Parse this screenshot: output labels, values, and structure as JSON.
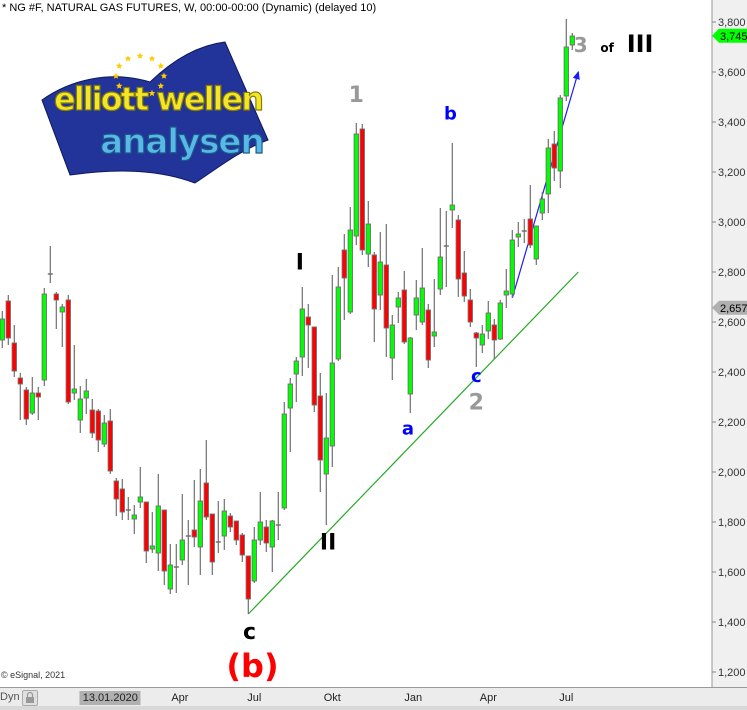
{
  "header": {
    "title": "* NG #F, NATURAL GAS FUTURES, W, 00:00-00:00 (Dynamic) (delayed 10)"
  },
  "copyright": "© eSignal, 2021",
  "logo": {
    "line1": "elliott wellen",
    "line2": "analysen"
  },
  "bottom_bar": {
    "mode_label": "Dyn",
    "lock_icon": "lock-icon"
  },
  "colors": {
    "up": "#00ff00",
    "down": "#ff0000",
    "wick": "#707070",
    "trendline": "#22aa22",
    "arrow": "#1a1aff",
    "axis_bg": "#f0f0f0"
  },
  "chart_data": {
    "type": "candlestick",
    "title": "",
    "y_axis": {
      "position": "right",
      "min": 1200,
      "max": 3800,
      "ticks": [
        "1,200",
        "1,400",
        "1,600",
        "1,800",
        "2,000",
        "2,200",
        "2,400",
        "2,600",
        "2,800",
        "3,000",
        "3,200",
        "3,400",
        "3,600",
        "3,800"
      ],
      "tick_values": [
        1200,
        1400,
        1600,
        1800,
        2000,
        2200,
        2400,
        2600,
        2800,
        3000,
        3200,
        3400,
        3600,
        3800
      ]
    },
    "x_ticks": [
      {
        "label": "13.01.2020",
        "at": 18,
        "highlighted": true
      },
      {
        "label": "Apr",
        "at": 29.6
      },
      {
        "label": "Jul",
        "at": 42
      },
      {
        "label": "Okt",
        "at": 55
      },
      {
        "label": "Jan",
        "at": 68.5
      },
      {
        "label": "Apr",
        "at": 81
      },
      {
        "label": "Jul",
        "at": 94
      }
    ],
    "grid": false,
    "price_markers": [
      {
        "label": "3,745",
        "value": 3745,
        "color": "#00ff00"
      },
      {
        "label": "2,657",
        "value": 2657,
        "color": "#b0b0b0"
      }
    ],
    "ohlc": [
      [
        2528,
        2644,
        2496,
        2612
      ],
      [
        2684,
        2708,
        2508,
        2536
      ],
      [
        2516,
        2588,
        2380,
        2404
      ],
      [
        2376,
        2396,
        2208,
        2352
      ],
      [
        2328,
        2340,
        2188,
        2212
      ],
      [
        2236,
        2380,
        2228,
        2316
      ],
      [
        2316,
        2340,
        2208,
        2300
      ],
      [
        2368,
        2736,
        2344,
        2712
      ],
      [
        2792,
        2904,
        2756,
        2792
      ],
      [
        2712,
        2720,
        2572,
        2688
      ],
      [
        2640,
        2672,
        2500,
        2660
      ],
      [
        2688,
        2708,
        2272,
        2280
      ],
      [
        2316,
        2508,
        2288,
        2332
      ],
      [
        2208,
        2344,
        2156,
        2292
      ],
      [
        2296,
        2372,
        2232,
        2324
      ],
      [
        2248,
        2292,
        2136,
        2156
      ],
      [
        2244,
        2252,
        2080,
        2128
      ],
      [
        2112,
        2228,
        2100,
        2196
      ],
      [
        2204,
        2252,
        1992,
        2004
      ],
      [
        1964,
        1976,
        1824,
        1892
      ],
      [
        1932,
        1972,
        1808,
        1840
      ],
      [
        1848,
        1900,
        1808,
        1848
      ],
      [
        1812,
        1868,
        1752,
        1828
      ],
      [
        1880,
        2020,
        1856,
        1900
      ],
      [
        1880,
        1880,
        1636,
        1684
      ],
      [
        1692,
        1840,
        1676,
        1704
      ],
      [
        1676,
        1992,
        1604,
        1864
      ],
      [
        1848,
        1848,
        1548,
        1604
      ],
      [
        1532,
        1712,
        1512,
        1628
      ],
      [
        1620,
        1712,
        1516,
        1620
      ],
      [
        1648,
        1912,
        1628,
        1728
      ],
      [
        1744,
        1808,
        1548,
        1744
      ],
      [
        1768,
        1968,
        1700,
        1740
      ],
      [
        1700,
        2012,
        1588,
        1884
      ],
      [
        1956,
        2128,
        1808,
        1820
      ],
      [
        1832,
        1832,
        1588,
        1640
      ],
      [
        1720,
        1884,
        1676,
        1720
      ],
      [
        1744,
        1892,
        1688,
        1844
      ],
      [
        1824,
        1836,
        1760,
        1780
      ],
      [
        1804,
        1804,
        1708,
        1728
      ],
      [
        1748,
        1756,
        1640,
        1668
      ],
      [
        1664,
        1664,
        1432,
        1492
      ],
      [
        1564,
        1780,
        1556,
        1728
      ],
      [
        1728,
        1920,
        1708,
        1800
      ],
      [
        1780,
        1808,
        1680,
        1716
      ],
      [
        1700,
        1808,
        1600,
        1804
      ],
      [
        1788,
        1920,
        1728,
        1788
      ],
      [
        1856,
        2280,
        1848,
        2232
      ],
      [
        2256,
        2376,
        2080,
        2352
      ],
      [
        2392,
        2460,
        2280,
        2444
      ],
      [
        2460,
        2740,
        2384,
        2652
      ],
      [
        2620,
        2672,
        2416,
        2588
      ],
      [
        2580,
        2580,
        2240,
        2268
      ],
      [
        2304,
        2396,
        1920,
        2048
      ],
      [
        1992,
        2316,
        1788,
        2136
      ],
      [
        2104,
        2788,
        2020,
        2436
      ],
      [
        2452,
        2820,
        2444,
        2740
      ],
      [
        2888,
        2952,
        2608,
        2776
      ],
      [
        2640,
        3060,
        2632,
        2968
      ],
      [
        2944,
        3396,
        2908,
        3352
      ],
      [
        3372,
        3392,
        2868,
        2888
      ],
      [
        2872,
        3084,
        2820,
        2992
      ],
      [
        2868,
        2880,
        2520,
        2652
      ],
      [
        2708,
        2960,
        2648,
        2840
      ],
      [
        2828,
        2992,
        2460,
        2576
      ],
      [
        2456,
        2628,
        2368,
        2588
      ],
      [
        2660,
        2720,
        2596,
        2696
      ],
      [
        2728,
        2804,
        2512,
        2520
      ],
      [
        2312,
        2540,
        2236,
        2536
      ],
      [
        2628,
        2768,
        2568,
        2696
      ],
      [
        2600,
        2896,
        2588,
        2736
      ],
      [
        2648,
        2672,
        2416,
        2448
      ],
      [
        2544,
        2772,
        2500,
        2560
      ],
      [
        2732,
        3056,
        2708,
        2860
      ],
      [
        2904,
        3044,
        2740,
        2904
      ],
      [
        3048,
        3316,
        2976,
        3068
      ],
      [
        3008,
        3028,
        2700,
        2772
      ],
      [
        2796,
        2884,
        2680,
        2704
      ],
      [
        2688,
        2732,
        2580,
        2600
      ],
      [
        2556,
        2560,
        2420,
        2536
      ],
      [
        2508,
        2588,
        2476,
        2552
      ],
      [
        2564,
        2684,
        2532,
        2636
      ],
      [
        2588,
        2612,
        2452,
        2528
      ],
      [
        2532,
        2688,
        2528,
        2676
      ],
      [
        2708,
        2812,
        2656,
        2724
      ],
      [
        2712,
        2968,
        2696,
        2928
      ],
      [
        2940,
        3000,
        2900,
        2952
      ],
      [
        2964,
        3012,
        2916,
        2964
      ],
      [
        3012,
        3148,
        2896,
        2908
      ],
      [
        2852,
        2984,
        2828,
        2984
      ],
      [
        3036,
        3120,
        3008,
        3092
      ],
      [
        3112,
        3332,
        3036,
        3296
      ],
      [
        3312,
        3364,
        3164,
        3216
      ],
      [
        3204,
        3508,
        3136,
        3496
      ],
      [
        3504,
        3812,
        3484,
        3700
      ],
      [
        3708,
        3756,
        3688,
        3744
      ]
    ],
    "trendlines": [
      {
        "kind": "support",
        "from": [
          41,
          1432
        ],
        "to": [
          96,
          2800
        ],
        "color": "#22aa22"
      },
      {
        "kind": "arrow",
        "from": [
          85,
          2696
        ],
        "to": [
          96,
          3600
        ],
        "color": "#1a1aff"
      }
    ],
    "annotations": [
      {
        "text": "1",
        "at": [
          59,
          3480
        ],
        "color": "#999999",
        "size": 22
      },
      {
        "text": "b",
        "at": [
          74.7,
          3410
        ],
        "color": "#0000ff",
        "size": 18
      },
      {
        "text": "I",
        "at": [
          49.6,
          2810
        ],
        "color": "#000000",
        "size": 22
      },
      {
        "text": "II",
        "at": [
          54.3,
          1690
        ],
        "color": "#000000",
        "size": 22
      },
      {
        "text": "a",
        "at": [
          67.6,
          2150
        ],
        "color": "#0000ff",
        "size": 18
      },
      {
        "text": "c",
        "at": [
          79,
          2360
        ],
        "color": "#0000ff",
        "size": 18
      },
      {
        "text": "2",
        "at": [
          79,
          2250
        ],
        "color": "#999999",
        "size": 22
      },
      {
        "text": "3",
        "at": [
          96.4,
          3680
        ],
        "color": "#999999",
        "size": 20
      },
      {
        "text": "of",
        "at": [
          100.8,
          3680
        ],
        "color": "#000000",
        "size": 12
      },
      {
        "text": "III",
        "at": [
          106.3,
          3680
        ],
        "color": "#000000",
        "size": 24
      },
      {
        "text": "c",
        "at": [
          41.2,
          1330
        ],
        "color": "#000000",
        "size": 22
      },
      {
        "text": "(b)",
        "at": [
          41.7,
          1225
        ],
        "color": "#ff0000",
        "size": 32
      }
    ]
  }
}
